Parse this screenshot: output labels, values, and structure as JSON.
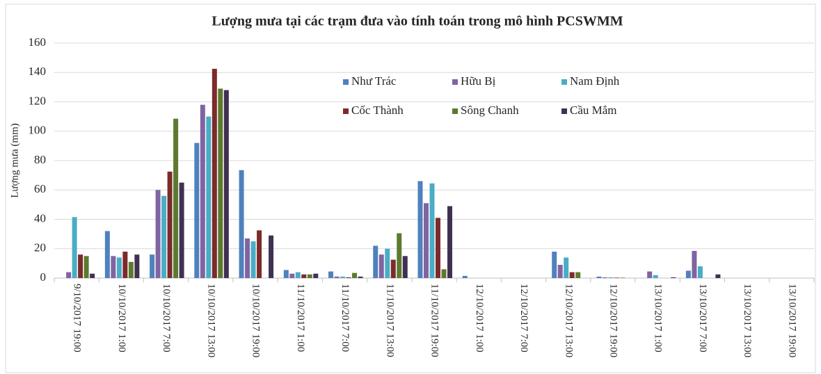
{
  "chart_data": {
    "type": "bar",
    "title": "Lượng mưa tại các trạm đưa vào tính toán trong mô hình PCSWMM",
    "y_label": "Lượng mưa (mm)",
    "categories": [
      "9/10/2017 19:00",
      "10/10/2017 1:00",
      "10/10/2017 7:00",
      "10/10/2017 13:00",
      "10/10/2017 19:00",
      "11/10/2017 1:00",
      "11/10/2017 7:00",
      "11/10/2017 13:00",
      "11/10/2017 19:00",
      "12/10/2017 1:00",
      "12/10/2017 7:00",
      "12/10/2017 13:00",
      "12/10/2017 19:00",
      "13/10/2017 1:00",
      "13/10/2017 7:00",
      "13/10/2017 13:00",
      "13/10/2017 19:00"
    ],
    "series": [
      {
        "name": "Như Trác",
        "color": "#4f81bd",
        "values": [
          0,
          32,
          16,
          92,
          73.5,
          5.5,
          4.5,
          22,
          66,
          1.5,
          0,
          18,
          1,
          0,
          5,
          0,
          0
        ]
      },
      {
        "name": "Hữu Bị",
        "color": "#8064a2",
        "values": [
          4,
          15,
          60,
          118,
          27,
          3,
          1,
          16,
          51,
          0,
          0,
          9,
          0.5,
          4.5,
          18.5,
          0,
          0
        ]
      },
      {
        "name": "Nam Định",
        "color": "#4bacc6",
        "values": [
          41.5,
          14,
          56,
          110,
          25,
          4,
          1,
          20,
          64.5,
          0,
          0,
          14,
          0.5,
          2,
          8,
          0,
          0
        ]
      },
      {
        "name": "Cốc Thành",
        "color": "#7b2c2a",
        "values": [
          16,
          18,
          72.5,
          142.5,
          32.5,
          2.5,
          0.5,
          12.5,
          41,
          0,
          0,
          4,
          0.3,
          0,
          0,
          0,
          0
        ]
      },
      {
        "name": "Sông Chanh",
        "color": "#5c7a2e",
        "values": [
          15,
          11,
          108.5,
          129,
          0,
          2.5,
          3.5,
          30.5,
          6,
          0,
          0,
          4,
          0.3,
          0,
          0,
          0,
          0
        ]
      },
      {
        "name": "Cầu Mắm",
        "color": "#403152",
        "values": [
          3,
          16,
          65,
          128,
          29,
          3,
          1,
          15,
          49,
          0,
          0,
          0,
          0,
          0.5,
          2.5,
          0,
          0
        ]
      }
    ],
    "ylim": [
      0,
      160
    ],
    "yticks": [
      0,
      20,
      40,
      60,
      80,
      100,
      120,
      140,
      160
    ],
    "grid": true
  }
}
